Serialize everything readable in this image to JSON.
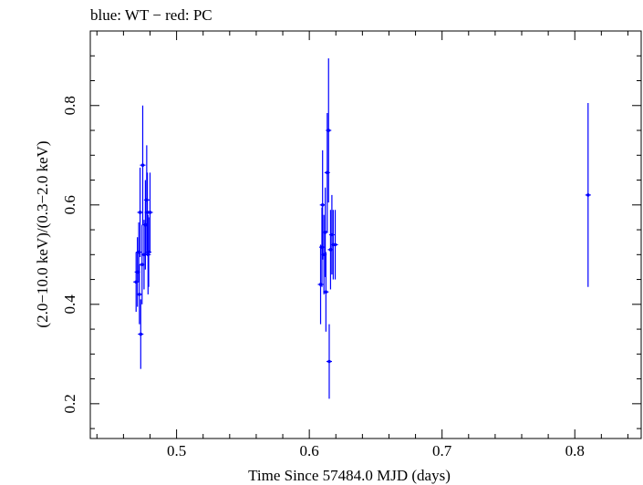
{
  "chart_data": {
    "type": "scatter",
    "title": "blue: WT − red: PC",
    "xlabel": "Time Since 57484.0 MJD (days)",
    "ylabel": "(2.0−10.0 keV)/(0.3−2.0 keV)",
    "xlim": [
      0.435,
      0.85
    ],
    "ylim": [
      0.13,
      0.95
    ],
    "x_ticks": [
      0.5,
      0.6,
      0.7,
      0.8
    ],
    "x_tick_labels": [
      "0.5",
      "0.6",
      "0.7",
      "0.8"
    ],
    "y_ticks": [
      0.2,
      0.4,
      0.6,
      0.8
    ],
    "y_tick_labels": [
      "0.2",
      "0.4",
      "0.6",
      "0.8"
    ],
    "grid": false,
    "legend": "none",
    "series": [
      {
        "color": "#0000ff",
        "points": [
          {
            "x": 0.4695,
            "y": 0.445,
            "yerr": 0.06
          },
          {
            "x": 0.4705,
            "y": 0.465,
            "yerr": 0.07
          },
          {
            "x": 0.4715,
            "y": 0.505,
            "yerr": 0.06
          },
          {
            "x": 0.472,
            "y": 0.42,
            "yerr": 0.06
          },
          {
            "x": 0.4725,
            "y": 0.585,
            "yerr": 0.09
          },
          {
            "x": 0.473,
            "y": 0.34,
            "yerr": 0.07
          },
          {
            "x": 0.474,
            "y": 0.48,
            "yerr": 0.08
          },
          {
            "x": 0.4745,
            "y": 0.68,
            "yerr": 0.12
          },
          {
            "x": 0.4755,
            "y": 0.5,
            "yerr": 0.07
          },
          {
            "x": 0.4765,
            "y": 0.56,
            "yerr": 0.09
          },
          {
            "x": 0.4775,
            "y": 0.61,
            "yerr": 0.11
          },
          {
            "x": 0.478,
            "y": 0.585,
            "yerr": 0.08
          },
          {
            "x": 0.4785,
            "y": 0.5,
            "yerr": 0.08
          },
          {
            "x": 0.479,
            "y": 0.505,
            "yerr": 0.07
          },
          {
            "x": 0.48,
            "y": 0.585,
            "yerr": 0.08
          },
          {
            "x": 0.6085,
            "y": 0.44,
            "yerr": 0.08
          },
          {
            "x": 0.6095,
            "y": 0.515,
            "yerr": 0.08
          },
          {
            "x": 0.61,
            "y": 0.6,
            "yerr": 0.11
          },
          {
            "x": 0.611,
            "y": 0.5,
            "yerr": 0.08
          },
          {
            "x": 0.612,
            "y": 0.545,
            "yerr": 0.09
          },
          {
            "x": 0.6125,
            "y": 0.425,
            "yerr": 0.08
          },
          {
            "x": 0.6135,
            "y": 0.665,
            "yerr": 0.12
          },
          {
            "x": 0.6145,
            "y": 0.75,
            "yerr": 0.145
          },
          {
            "x": 0.615,
            "y": 0.285,
            "yerr": 0.075
          },
          {
            "x": 0.616,
            "y": 0.51,
            "yerr": 0.08
          },
          {
            "x": 0.617,
            "y": 0.54,
            "yerr": 0.08
          },
          {
            "x": 0.618,
            "y": 0.52,
            "yerr": 0.07
          },
          {
            "x": 0.6195,
            "y": 0.52,
            "yerr": 0.07
          },
          {
            "x": 0.81,
            "y": 0.62,
            "yerr": 0.185
          }
        ]
      }
    ]
  }
}
